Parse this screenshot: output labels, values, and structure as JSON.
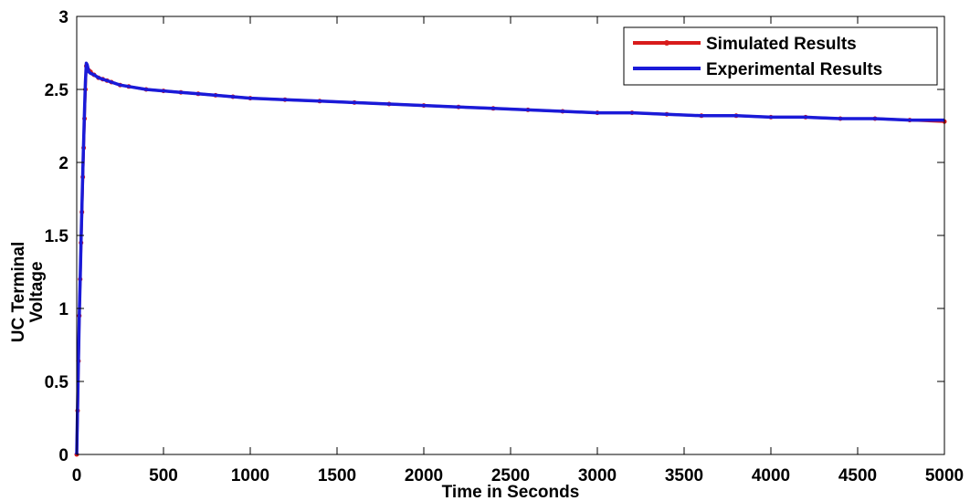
{
  "chart_data": {
    "type": "line",
    "title": "",
    "xlabel": "Time in Seconds",
    "ylabel_lines": [
      "UC Terminal",
      "Voltage"
    ],
    "xlim": [
      0,
      5000
    ],
    "ylim": [
      0,
      3
    ],
    "xticks": [
      0,
      500,
      1000,
      1500,
      2000,
      2500,
      3000,
      3500,
      4000,
      4500,
      5000
    ],
    "yticks": [
      0,
      0.5,
      1,
      1.5,
      2,
      2.5,
      3
    ],
    "grid": false,
    "legend_position": "top-right",
    "series": [
      {
        "name": "Simulated Results",
        "color": "#d81b1b",
        "marker": "dot",
        "x": [
          0,
          5,
          10,
          15,
          20,
          25,
          30,
          35,
          40,
          45,
          50,
          55,
          60,
          70,
          80,
          100,
          125,
          150,
          175,
          200,
          250,
          300,
          400,
          500,
          600,
          700,
          800,
          900,
          1000,
          1200,
          1400,
          1600,
          1800,
          2000,
          2200,
          2400,
          2600,
          2800,
          3000,
          3200,
          3400,
          3600,
          3800,
          4000,
          4200,
          4400,
          4600,
          4800,
          5000
        ],
        "y": [
          0,
          0.3,
          0.64,
          0.95,
          1.2,
          1.45,
          1.66,
          1.9,
          2.1,
          2.3,
          2.5,
          2.66,
          2.64,
          2.63,
          2.62,
          2.6,
          2.58,
          2.57,
          2.56,
          2.55,
          2.53,
          2.52,
          2.5,
          2.49,
          2.48,
          2.47,
          2.46,
          2.45,
          2.44,
          2.43,
          2.42,
          2.41,
          2.4,
          2.39,
          2.38,
          2.37,
          2.36,
          2.35,
          2.34,
          2.34,
          2.33,
          2.32,
          2.32,
          2.31,
          2.31,
          2.3,
          2.3,
          2.29,
          2.28
        ]
      },
      {
        "name": "Experimental Results",
        "color": "#1a1ad8",
        "marker": "none",
        "x": [
          0,
          5,
          10,
          15,
          20,
          25,
          30,
          35,
          40,
          45,
          50,
          55,
          60,
          70,
          80,
          100,
          125,
          150,
          175,
          200,
          250,
          300,
          400,
          500,
          600,
          700,
          800,
          900,
          1000,
          1200,
          1400,
          1600,
          1800,
          2000,
          2200,
          2400,
          2600,
          2800,
          3000,
          3200,
          3400,
          3600,
          3800,
          4000,
          4200,
          4400,
          4600,
          4800,
          5000
        ],
        "y": [
          0,
          0.35,
          0.65,
          0.95,
          1.2,
          1.48,
          1.7,
          1.95,
          2.15,
          2.35,
          2.55,
          2.68,
          2.67,
          2.62,
          2.61,
          2.6,
          2.58,
          2.57,
          2.56,
          2.55,
          2.53,
          2.52,
          2.5,
          2.49,
          2.48,
          2.47,
          2.46,
          2.45,
          2.44,
          2.43,
          2.42,
          2.41,
          2.4,
          2.39,
          2.38,
          2.37,
          2.36,
          2.35,
          2.34,
          2.34,
          2.33,
          2.32,
          2.32,
          2.31,
          2.31,
          2.3,
          2.3,
          2.29,
          2.29
        ]
      }
    ]
  }
}
